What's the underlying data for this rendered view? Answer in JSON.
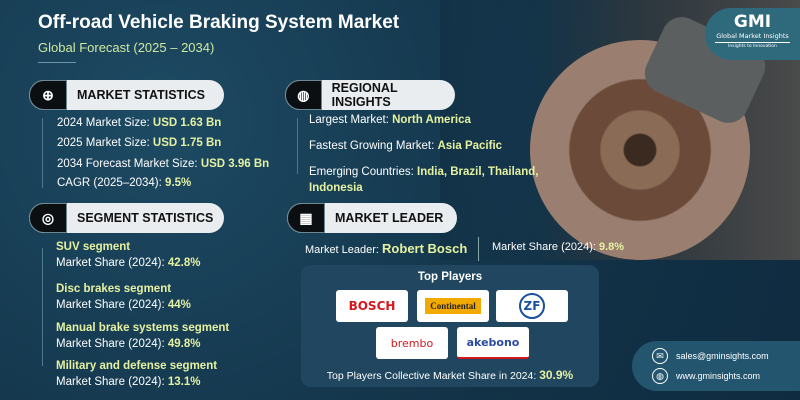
{
  "header": {
    "title": "Off-road Vehicle Braking System Market",
    "subtitle": "Global Forecast (2025 – 2034)"
  },
  "brand": {
    "name": "GMI",
    "tagline": "Global Market Insights",
    "slogan": "Insights to Innovation"
  },
  "market_statistics": {
    "heading": "MARKET STATISTICS",
    "items": [
      {
        "label": "2024 Market Size: ",
        "value": "USD 1.63 Bn"
      },
      {
        "label": "2025 Market Size: ",
        "value": "USD 1.75 Bn"
      },
      {
        "label": "2034 Forecast Market Size: ",
        "value": "USD 3.96 Bn"
      },
      {
        "label": "CAGR (2025–2034): ",
        "value": "9.5%"
      }
    ]
  },
  "regional_insights": {
    "heading": "REGIONAL INSIGHTS",
    "items": [
      {
        "label": "Largest Market: ",
        "value": "North America"
      },
      {
        "label": "Fastest Growing Market: ",
        "value": "Asia Pacific"
      },
      {
        "label": "Emerging Countries: ",
        "value": "India, Brazil, Thailand,",
        "value2": "Indonesia"
      }
    ]
  },
  "segment_statistics": {
    "heading": "SEGMENT STATISTICS",
    "items": [
      {
        "name": "SUV segment",
        "label": "Market Share (2024): ",
        "value": "42.8%"
      },
      {
        "name": "Disc brakes segment",
        "label": "Market Share (2024): ",
        "value": "44%"
      },
      {
        "name": "Manual brake systems segment",
        "label": "Market Share (2024): ",
        "value": "49.8%"
      },
      {
        "name": "Military and defense segment",
        "label": "Market Share (2024): ",
        "value": "13.1%"
      }
    ]
  },
  "market_leader": {
    "heading": "MARKET LEADER",
    "leader_label": "Market Leader: ",
    "leader": "Robert Bosch",
    "share_label": "Market Share (2024): ",
    "share": "9.8%"
  },
  "top_players": {
    "heading": "Top Players",
    "logos": [
      "BOSCH",
      "Continental",
      "ZF",
      "brembo",
      "akebono"
    ],
    "collective_label": "Top Players Collective Market Share in 2024: ",
    "collective_value": "30.9%"
  },
  "contact": {
    "email": "sales@gminsights.com",
    "website": "www.gminsights.com"
  },
  "colors": {
    "background": "#13344a",
    "accent": "#e5f1a1"
  }
}
